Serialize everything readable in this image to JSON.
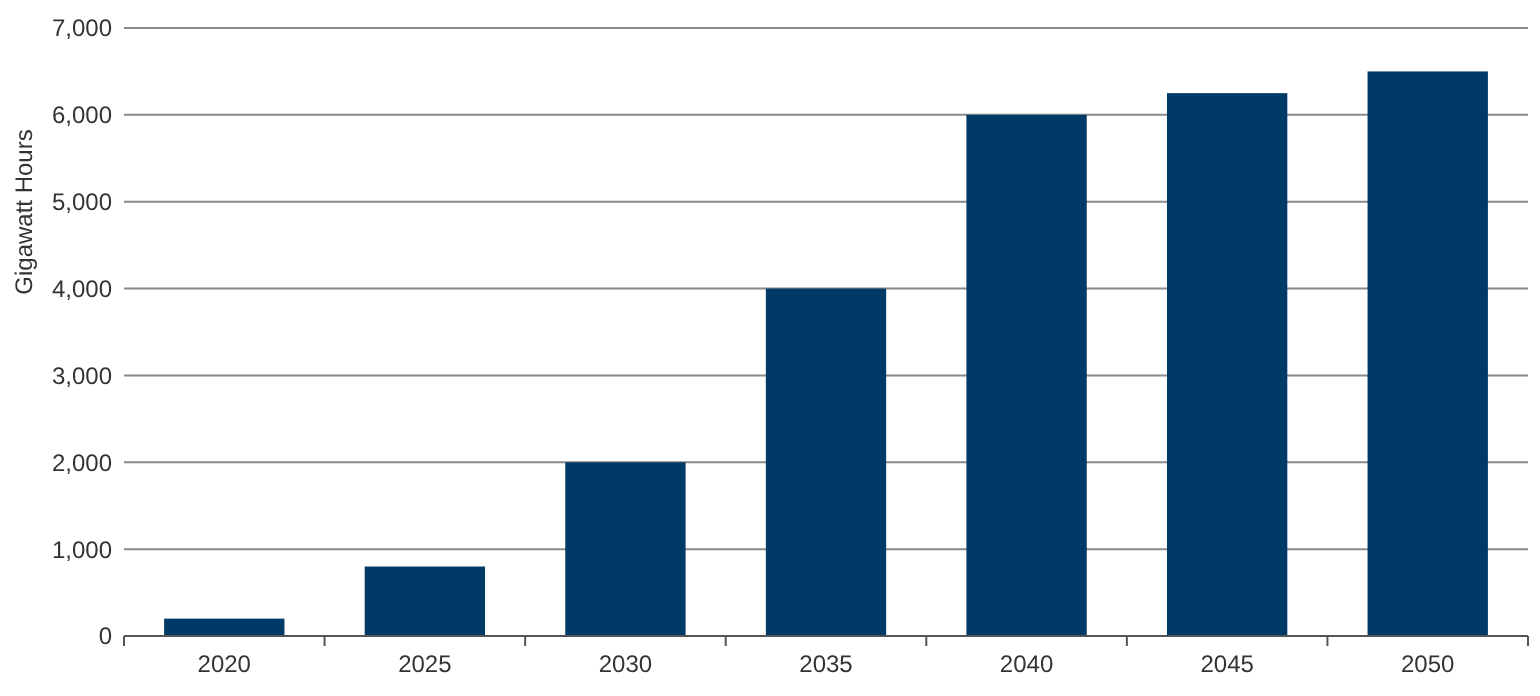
{
  "chart_data": {
    "type": "bar",
    "ylabel": "Gigawatt Hours",
    "categories": [
      "2020",
      "2025",
      "2030",
      "2035",
      "2040",
      "2045",
      "2050"
    ],
    "values": [
      200,
      800,
      2000,
      4000,
      6000,
      6250,
      6500
    ],
    "color": "#003a66",
    "ylim": [
      0,
      7000
    ],
    "yticks": [
      {
        "value": 0,
        "label": "0"
      },
      {
        "value": 1000,
        "label": "1,000"
      },
      {
        "value": 2000,
        "label": "2,000"
      },
      {
        "value": 3000,
        "label": "3,000"
      },
      {
        "value": 4000,
        "label": "4,000"
      },
      {
        "value": 5000,
        "label": "5,000"
      },
      {
        "value": 6000,
        "label": "6,000"
      },
      {
        "value": 7000,
        "label": "7,000"
      }
    ],
    "grid": "y"
  }
}
